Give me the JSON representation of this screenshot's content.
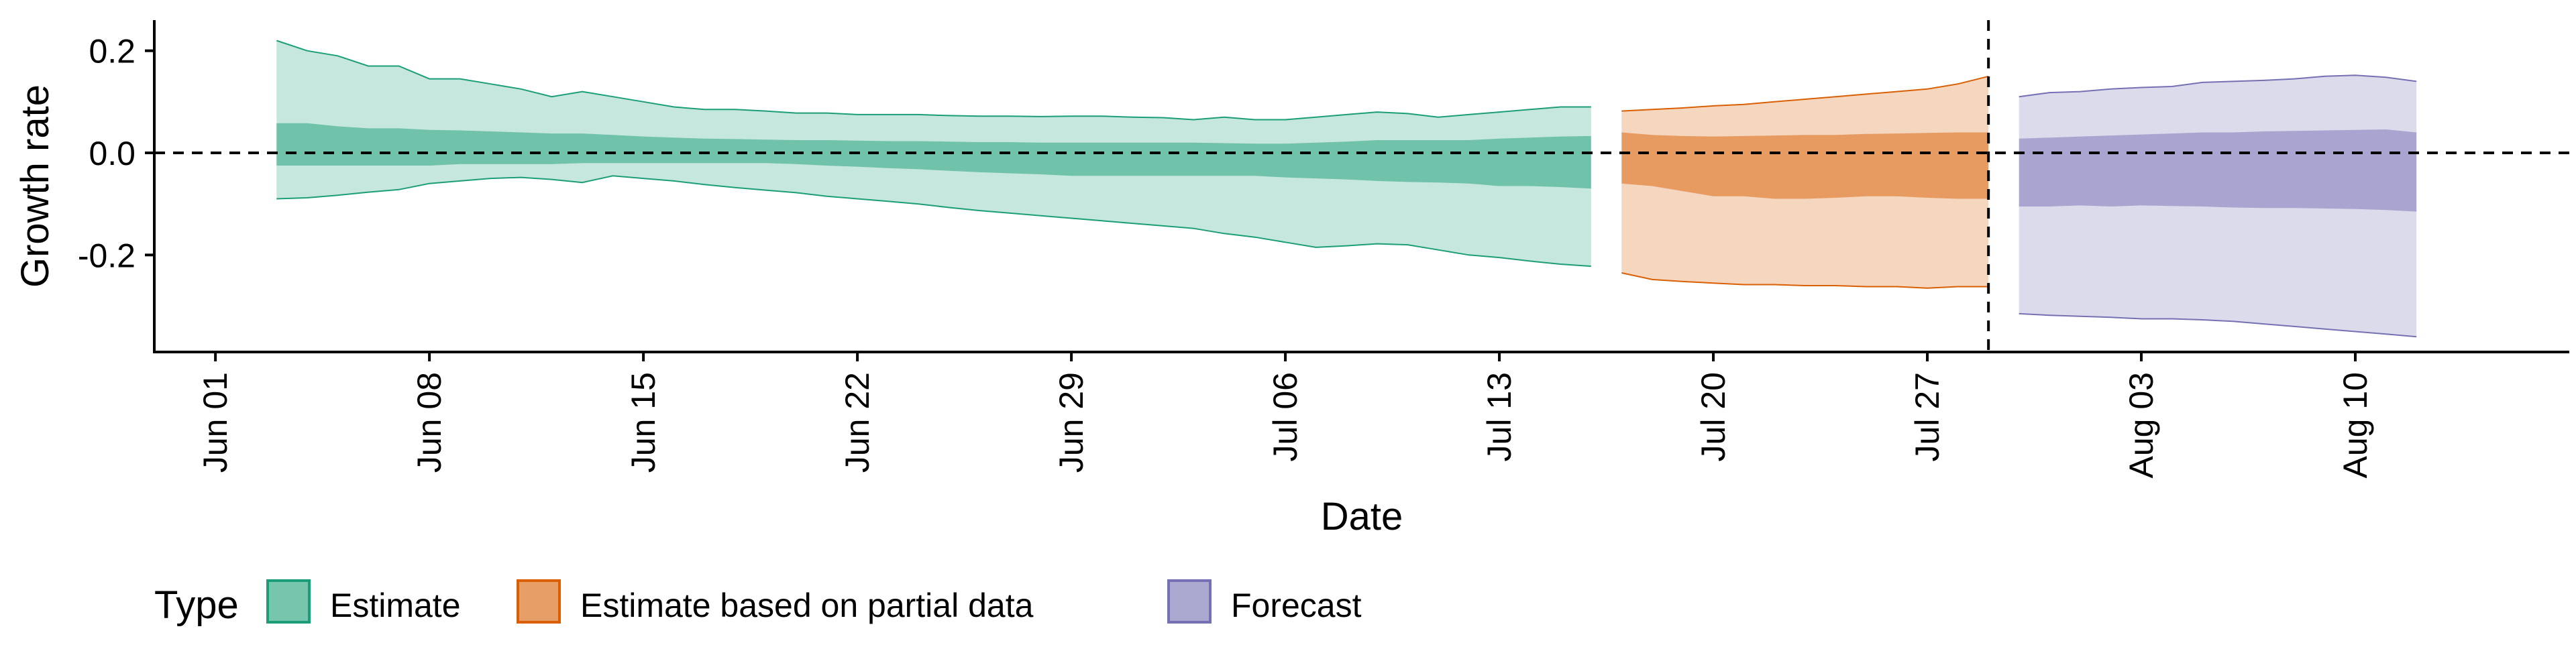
{
  "chart_data": {
    "type": "area",
    "xlabel": "Date",
    "ylabel": "Growth rate",
    "x_range": [
      "2020-05-30",
      "2020-08-17"
    ],
    "y_range": [
      -0.39,
      0.26
    ],
    "x_ticks": [
      {
        "date": "2020-06-01",
        "label": "Jun 01"
      },
      {
        "date": "2020-06-08",
        "label": "Jun 08"
      },
      {
        "date": "2020-06-15",
        "label": "Jun 15"
      },
      {
        "date": "2020-06-22",
        "label": "Jun 22"
      },
      {
        "date": "2020-06-29",
        "label": "Jun 29"
      },
      {
        "date": "2020-07-06",
        "label": "Jul 06"
      },
      {
        "date": "2020-07-13",
        "label": "Jul 13"
      },
      {
        "date": "2020-07-20",
        "label": "Jul 20"
      },
      {
        "date": "2020-07-27",
        "label": "Jul 27"
      },
      {
        "date": "2020-08-03",
        "label": "Aug 03"
      },
      {
        "date": "2020-08-10",
        "label": "Aug 10"
      }
    ],
    "y_ticks": [
      {
        "value": 0.2,
        "label": "0.2"
      },
      {
        "value": 0.0,
        "label": "0.0"
      },
      {
        "value": -0.2,
        "label": "-0.2"
      }
    ],
    "reference_lines": {
      "horizontal_y": 0.0,
      "vertical_x": "2020-07-29"
    },
    "grid": false,
    "legend": {
      "position": "bottom-left",
      "title": "Type",
      "items": [
        "Estimate",
        "Estimate based on partial data",
        "Forecast"
      ]
    },
    "series": [
      {
        "name": "Estimate",
        "fill": "#1b9e77",
        "line": "#1b9e77",
        "x": [
          "2020-06-03",
          "2020-06-04",
          "2020-06-05",
          "2020-06-06",
          "2020-06-07",
          "2020-06-08",
          "2020-06-09",
          "2020-06-10",
          "2020-06-11",
          "2020-06-12",
          "2020-06-13",
          "2020-06-14",
          "2020-06-15",
          "2020-06-16",
          "2020-06-17",
          "2020-06-18",
          "2020-06-19",
          "2020-06-20",
          "2020-06-21",
          "2020-06-22",
          "2020-06-23",
          "2020-06-24",
          "2020-06-25",
          "2020-06-26",
          "2020-06-27",
          "2020-06-28",
          "2020-06-29",
          "2020-06-30",
          "2020-07-01",
          "2020-07-02",
          "2020-07-03",
          "2020-07-04",
          "2020-07-05",
          "2020-07-06",
          "2020-07-07",
          "2020-07-08",
          "2020-07-09",
          "2020-07-10",
          "2020-07-11",
          "2020-07-12",
          "2020-07-13",
          "2020-07-14",
          "2020-07-15",
          "2020-07-16"
        ],
        "outer_upper": [
          0.22,
          0.2,
          0.19,
          0.17,
          0.17,
          0.145,
          0.145,
          0.135,
          0.125,
          0.11,
          0.12,
          0.11,
          0.1,
          0.09,
          0.085,
          0.085,
          0.082,
          0.078,
          0.078,
          0.075,
          0.075,
          0.075,
          0.073,
          0.072,
          0.072,
          0.071,
          0.072,
          0.072,
          0.07,
          0.069,
          0.065,
          0.07,
          0.065,
          0.065,
          0.07,
          0.075,
          0.08,
          0.077,
          0.07,
          0.075,
          0.08,
          0.085,
          0.09,
          0.09
        ],
        "inner_upper": [
          0.058,
          0.058,
          0.052,
          0.048,
          0.048,
          0.045,
          0.044,
          0.042,
          0.04,
          0.038,
          0.038,
          0.035,
          0.032,
          0.03,
          0.028,
          0.027,
          0.026,
          0.025,
          0.025,
          0.024,
          0.023,
          0.023,
          0.022,
          0.021,
          0.021,
          0.02,
          0.02,
          0.02,
          0.02,
          0.02,
          0.02,
          0.019,
          0.018,
          0.018,
          0.02,
          0.022,
          0.025,
          0.025,
          0.025,
          0.025,
          0.028,
          0.03,
          0.032,
          0.033
        ],
        "inner_lower": [
          -0.025,
          -0.025,
          -0.025,
          -0.025,
          -0.025,
          -0.025,
          -0.022,
          -0.022,
          -0.022,
          -0.022,
          -0.02,
          -0.02,
          -0.02,
          -0.02,
          -0.02,
          -0.02,
          -0.02,
          -0.022,
          -0.025,
          -0.027,
          -0.03,
          -0.032,
          -0.035,
          -0.038,
          -0.04,
          -0.042,
          -0.045,
          -0.045,
          -0.045,
          -0.045,
          -0.045,
          -0.045,
          -0.045,
          -0.048,
          -0.05,
          -0.052,
          -0.055,
          -0.057,
          -0.058,
          -0.06,
          -0.065,
          -0.065,
          -0.067,
          -0.07
        ],
        "outer_lower": [
          -0.09,
          -0.088,
          -0.083,
          -0.077,
          -0.072,
          -0.06,
          -0.055,
          -0.05,
          -0.048,
          -0.052,
          -0.058,
          -0.045,
          -0.05,
          -0.055,
          -0.062,
          -0.068,
          -0.073,
          -0.078,
          -0.085,
          -0.09,
          -0.095,
          -0.1,
          -0.107,
          -0.113,
          -0.118,
          -0.123,
          -0.128,
          -0.133,
          -0.138,
          -0.143,
          -0.148,
          -0.158,
          -0.165,
          -0.175,
          -0.185,
          -0.182,
          -0.178,
          -0.18,
          -0.19,
          -0.2,
          -0.205,
          -0.212,
          -0.218,
          -0.222
        ]
      },
      {
        "name": "Estimate based on partial data",
        "fill": "#d95f02",
        "line": "#d95f02",
        "x": [
          "2020-07-17",
          "2020-07-18",
          "2020-07-19",
          "2020-07-20",
          "2020-07-21",
          "2020-07-22",
          "2020-07-23",
          "2020-07-24",
          "2020-07-25",
          "2020-07-26",
          "2020-07-27",
          "2020-07-28",
          "2020-07-29"
        ],
        "outer_upper": [
          0.082,
          0.085,
          0.088,
          0.092,
          0.095,
          0.1,
          0.105,
          0.11,
          0.115,
          0.12,
          0.125,
          0.135,
          0.15
        ],
        "inner_upper": [
          0.04,
          0.035,
          0.033,
          0.032,
          0.033,
          0.034,
          0.035,
          0.035,
          0.037,
          0.038,
          0.039,
          0.04,
          0.04
        ],
        "inner_lower": [
          -0.06,
          -0.065,
          -0.075,
          -0.085,
          -0.085,
          -0.09,
          -0.09,
          -0.088,
          -0.085,
          -0.085,
          -0.088,
          -0.09,
          -0.09
        ],
        "outer_lower": [
          -0.235,
          -0.248,
          -0.252,
          -0.255,
          -0.258,
          -0.258,
          -0.26,
          -0.26,
          -0.262,
          -0.262,
          -0.265,
          -0.262,
          -0.262
        ]
      },
      {
        "name": "Forecast",
        "fill": "#7570b3",
        "line": "#7570b3",
        "x": [
          "2020-07-30",
          "2020-07-31",
          "2020-08-01",
          "2020-08-02",
          "2020-08-03",
          "2020-08-04",
          "2020-08-05",
          "2020-08-06",
          "2020-08-07",
          "2020-08-08",
          "2020-08-09",
          "2020-08-10",
          "2020-08-11",
          "2020-08-12"
        ],
        "outer_upper": [
          0.11,
          0.118,
          0.12,
          0.125,
          0.128,
          0.13,
          0.138,
          0.14,
          0.142,
          0.145,
          0.15,
          0.152,
          0.148,
          0.14
        ],
        "inner_upper": [
          0.028,
          0.03,
          0.032,
          0.034,
          0.036,
          0.038,
          0.04,
          0.04,
          0.042,
          0.043,
          0.044,
          0.045,
          0.046,
          0.04
        ],
        "inner_lower": [
          -0.105,
          -0.105,
          -0.103,
          -0.105,
          -0.103,
          -0.104,
          -0.105,
          -0.107,
          -0.108,
          -0.108,
          -0.109,
          -0.11,
          -0.112,
          -0.115
        ],
        "outer_lower": [
          -0.315,
          -0.318,
          -0.32,
          -0.322,
          -0.325,
          -0.325,
          -0.327,
          -0.33,
          -0.335,
          -0.34,
          -0.345,
          -0.35,
          -0.355,
          -0.36
        ]
      }
    ]
  }
}
